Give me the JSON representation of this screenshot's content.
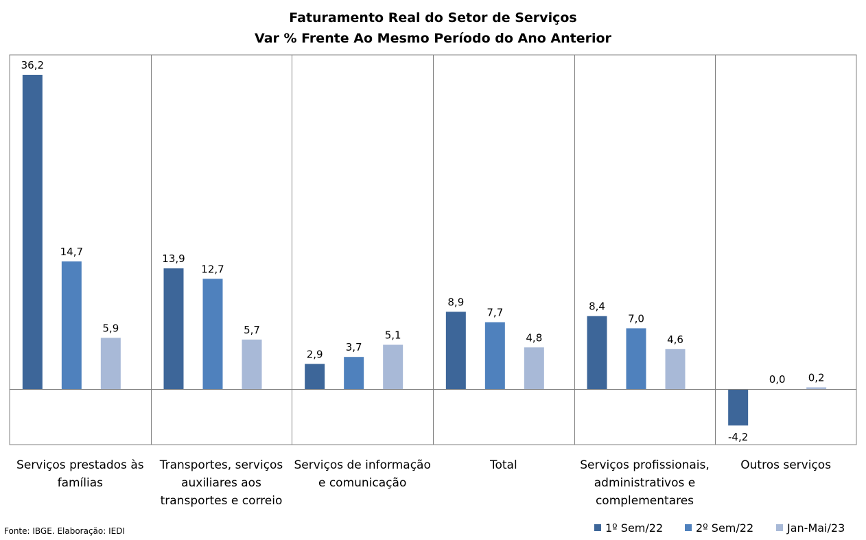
{
  "chart_data": {
    "type": "bar",
    "title": "Faturamento Real do Setor de Serviços",
    "subtitle": "Var % Frente Ao Mesmo Período do Ano Anterior",
    "categories": [
      [
        "Serviços prestados às",
        "famílias"
      ],
      [
        "Transportes, serviços",
        "auxiliares aos",
        "transportes e correio"
      ],
      [
        "Serviços de informação",
        "e comunicação"
      ],
      [
        "Total"
      ],
      [
        "Serviços profissionais,",
        "administrativos e",
        "complementares"
      ],
      [
        "Outros serviços"
      ]
    ],
    "series": [
      {
        "name": "1º Sem/22",
        "color": "#3d6699",
        "values": [
          36.2,
          13.9,
          2.9,
          8.9,
          8.4,
          -4.2
        ]
      },
      {
        "name": "2º Sem/22",
        "color": "#4f81bd",
        "values": [
          14.7,
          12.7,
          3.7,
          7.7,
          7.0,
          0.0
        ]
      },
      {
        "name": "Jan-Mai/23",
        "color": "#a8b9d7",
        "values": [
          5.9,
          5.7,
          5.1,
          4.8,
          4.6,
          0.2
        ]
      }
    ],
    "data_labels": [
      [
        "36,2",
        "13,9",
        "2,9",
        "8,9",
        "8,4",
        "-4,2"
      ],
      [
        "14,7",
        "12,7",
        "3,7",
        "7,7",
        "7,0",
        "0,0"
      ],
      [
        "5,9",
        "5,7",
        "5,1",
        "4,8",
        "4,6",
        "0,2"
      ]
    ],
    "ylim": [
      -6.5,
      38.5
    ],
    "grid": false,
    "legend_position": "bottom-right",
    "source": "Fonte: IBGE. Elaboração: IEDI"
  }
}
